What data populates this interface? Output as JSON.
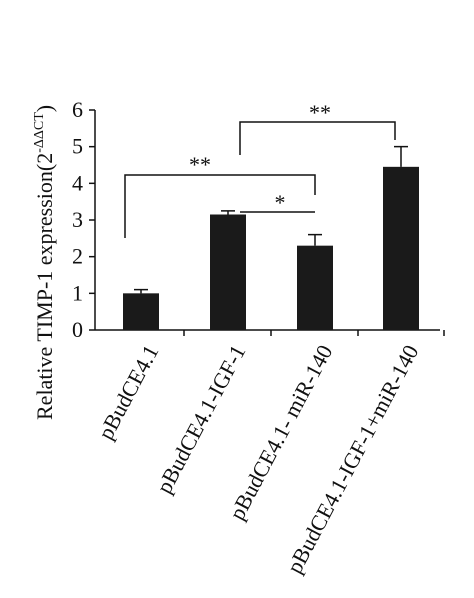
{
  "chart_data": {
    "type": "bar",
    "y_label": "Relative TIMP-1 expression(2",
    "y_label_sup": "-ΔΔCT",
    "y_label_end": ")",
    "categories": [
      "pBudCE4.1",
      "pBudCE4.1-IGF-1",
      "pBudCE4.1- miR-140",
      "pBudCE4.1-IGF-1+miR-140"
    ],
    "values": [
      1.0,
      3.15,
      2.3,
      4.45
    ],
    "errors": [
      0.1,
      0.1,
      0.3,
      0.55
    ],
    "color": "#1a1a1a",
    "ylim": [
      0,
      6
    ],
    "yticks": [
      0,
      1,
      2,
      3,
      4,
      5,
      6
    ],
    "annotations": [
      "**",
      "*",
      "**"
    ]
  }
}
